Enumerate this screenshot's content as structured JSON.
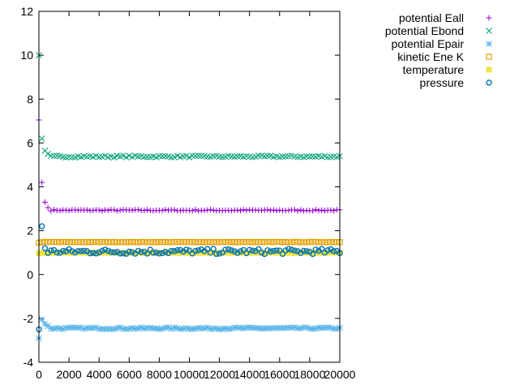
{
  "chart_data": {
    "type": "scatter",
    "xlim": [
      0,
      20000
    ],
    "ylim": [
      -4,
      12
    ],
    "x_ticks": [
      0,
      2000,
      4000,
      6000,
      8000,
      10000,
      12000,
      14000,
      16000,
      18000,
      20000
    ],
    "y_ticks": [
      -4,
      -2,
      0,
      2,
      4,
      6,
      8,
      10,
      12
    ],
    "legend_position": "top-right outside",
    "grid": false,
    "series": [
      {
        "name": "potential Eall",
        "marker": "plus",
        "color": "#9400d3",
        "start": [
          [
            0,
            7.05
          ],
          [
            200,
            4.2
          ],
          [
            400,
            3.3
          ],
          [
            600,
            3.05
          ]
        ],
        "steady": 2.93,
        "noise": 0.03
      },
      {
        "name": "potential Ebond",
        "marker": "cross",
        "color": "#009e73",
        "start": [
          [
            0,
            10.0
          ],
          [
            200,
            6.2
          ],
          [
            400,
            5.65
          ],
          [
            600,
            5.5
          ]
        ],
        "steady": 5.38,
        "noise": 0.04
      },
      {
        "name": "potential Epair",
        "marker": "star",
        "color": "#56b4e9",
        "start": [
          [
            0,
            -2.9
          ],
          [
            200,
            -2.05
          ],
          [
            400,
            -2.25
          ],
          [
            600,
            -2.35
          ]
        ],
        "steady": -2.45,
        "noise": 0.04
      },
      {
        "name": "kinetic Ene K",
        "marker": "square-open",
        "color": "#e69f00",
        "start": [
          [
            0,
            1.45
          ]
        ],
        "steady": 1.48,
        "noise": 0.01
      },
      {
        "name": "temperature",
        "marker": "square-filled",
        "color": "#f0e442",
        "start": [
          [
            0,
            0.97
          ]
        ],
        "steady": 0.99,
        "noise": 0.01
      },
      {
        "name": "pressure",
        "marker": "circle-open",
        "color": "#0072b2",
        "start": [
          [
            0,
            -2.5
          ],
          [
            200,
            2.2
          ],
          [
            400,
            1.2
          ]
        ],
        "steady": 1.05,
        "noise": 0.12
      }
    ]
  }
}
